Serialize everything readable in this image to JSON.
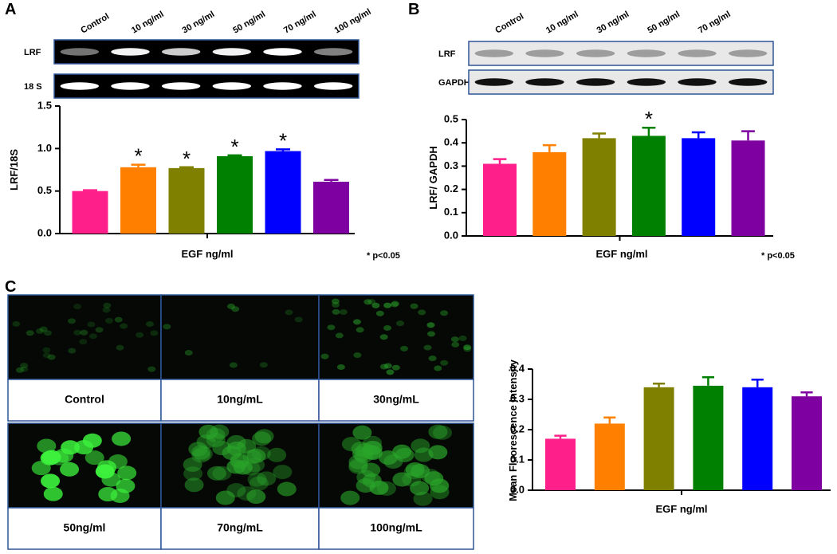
{
  "panel_labels": [
    "A",
    "B",
    "C"
  ],
  "blot_a": {
    "lanes": [
      "Control",
      "10 ng/ml",
      "30 ng/ml",
      "50 ng/ml",
      "70 ng/ml",
      "100 ng/ml"
    ],
    "rows": [
      "LRF",
      "18 S"
    ]
  },
  "blot_b": {
    "lanes": [
      "Control",
      "10 ng/ml",
      "30 ng/ml",
      "50 ng/ml",
      "70 ng/ml"
    ],
    "rows": [
      "LRF",
      "GAPDH"
    ]
  },
  "micrographs": {
    "labels": [
      "Control",
      "10ng/mL",
      "30ng/mL",
      "50ng/ml",
      "70ng/mL",
      "100ng/mL"
    ]
  },
  "chart_data": [
    {
      "type": "bar",
      "y_label": "LRF/18S",
      "x_label": "EGF ng/ml",
      "annotation": "* p<0.05",
      "values": [
        0.5,
        0.78,
        0.77,
        0.91,
        0.97,
        0.61
      ],
      "errors": [
        0.01,
        0.03,
        0.01,
        0.01,
        0.02,
        0.02
      ],
      "significance": [
        null,
        "*",
        "*",
        "*",
        "*",
        null
      ],
      "colors": [
        "#ff1f8a",
        "#ff8000",
        "#808000",
        "#008000",
        "#0000ff",
        "#7f00a0"
      ],
      "ylim": [
        0,
        1.5
      ],
      "yticks": [
        {
          "value": 0,
          "label": "0.0"
        },
        0.5,
        {
          "value": 1,
          "label": "1.0"
        },
        1.5
      ]
    },
    {
      "type": "bar",
      "y_label": "LRF/ GAPDH",
      "x_label": "EGF ng/ml",
      "annotation": "* p<0.05",
      "values": [
        0.31,
        0.36,
        0.42,
        0.43,
        0.42,
        0.41
      ],
      "errors": [
        0.02,
        0.03,
        0.02,
        0.035,
        0.025,
        0.04
      ],
      "significance": [
        null,
        null,
        null,
        "*",
        null,
        null
      ],
      "colors": [
        "#ff1f8a",
        "#ff8000",
        "#808000",
        "#008000",
        "#0000ff",
        "#7f00a0"
      ],
      "ylim": [
        0,
        0.5
      ],
      "yticks": [
        {
          "value": 0,
          "label": "0.0"
        },
        0.1,
        0.2,
        0.3,
        0.4,
        0.5
      ]
    },
    {
      "type": "bar",
      "y_label": "Mean Fluorescence Intensity",
      "x_label": "EGF ng/ml",
      "values": [
        0.17,
        0.22,
        0.34,
        0.345,
        0.34,
        0.31
      ],
      "errors": [
        0.01,
        0.02,
        0.012,
        0.028,
        0.025,
        0.013
      ],
      "colors": [
        "#ff1f8a",
        "#ff8000",
        "#808000",
        "#008000",
        "#0000ff",
        "#7f00a0"
      ],
      "ylim": [
        0,
        0.4
      ],
      "yticks": [
        {
          "value": 0,
          "label": "0.0"
        },
        0.1,
        0.2,
        0.3,
        0.4
      ]
    }
  ]
}
